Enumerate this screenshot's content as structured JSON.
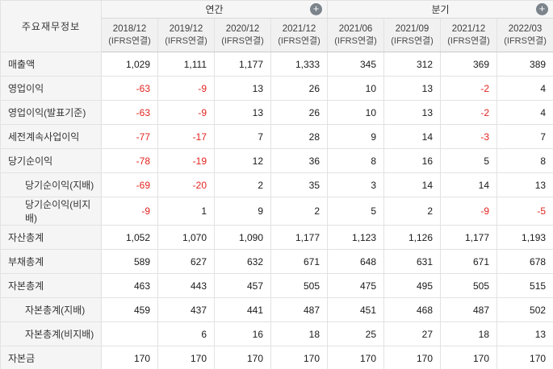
{
  "table": {
    "corner_label": "주요재무정보",
    "groups": [
      {
        "label": "연간",
        "icon": "plus-circle-icon"
      },
      {
        "label": "분기",
        "icon": "plus-circle-icon"
      }
    ],
    "columns": [
      {
        "date": "2018/12",
        "basis": "(IFRS연결)",
        "group": "연간"
      },
      {
        "date": "2019/12",
        "basis": "(IFRS연결)",
        "group": "연간"
      },
      {
        "date": "2020/12",
        "basis": "(IFRS연결)",
        "group": "연간"
      },
      {
        "date": "2021/12",
        "basis": "(IFRS연결)",
        "group": "연간"
      },
      {
        "date": "2021/06",
        "basis": "(IFRS연결)",
        "group": "분기"
      },
      {
        "date": "2021/09",
        "basis": "(IFRS연결)",
        "group": "분기"
      },
      {
        "date": "2021/12",
        "basis": "(IFRS연결)",
        "group": "분기"
      },
      {
        "date": "2022/03",
        "basis": "(IFRS연결)",
        "group": "분기"
      }
    ],
    "rows": [
      {
        "label": "매출액",
        "indent": false,
        "values": [
          "1,029",
          "1,111",
          "1,177",
          "1,333",
          "345",
          "312",
          "369",
          "389"
        ]
      },
      {
        "label": "영업이익",
        "indent": false,
        "values": [
          "-63",
          "-9",
          "13",
          "26",
          "10",
          "13",
          "-2",
          "4"
        ]
      },
      {
        "label": "영업이익(발표기준)",
        "indent": false,
        "values": [
          "-63",
          "-9",
          "13",
          "26",
          "10",
          "13",
          "-2",
          "4"
        ]
      },
      {
        "label": "세전계속사업이익",
        "indent": false,
        "values": [
          "-77",
          "-17",
          "7",
          "28",
          "9",
          "14",
          "-3",
          "7"
        ]
      },
      {
        "label": "당기순이익",
        "indent": false,
        "values": [
          "-78",
          "-19",
          "12",
          "36",
          "8",
          "16",
          "5",
          "8"
        ]
      },
      {
        "label": "당기순이익(지배)",
        "indent": true,
        "values": [
          "-69",
          "-20",
          "2",
          "35",
          "3",
          "14",
          "14",
          "13"
        ]
      },
      {
        "label": "당기순이익(비지배)",
        "indent": true,
        "values": [
          "-9",
          "1",
          "9",
          "2",
          "5",
          "2",
          "-9",
          "-5"
        ]
      },
      {
        "label": "자산총계",
        "indent": false,
        "values": [
          "1,052",
          "1,070",
          "1,090",
          "1,177",
          "1,123",
          "1,126",
          "1,177",
          "1,193"
        ]
      },
      {
        "label": "부채총계",
        "indent": false,
        "values": [
          "589",
          "627",
          "632",
          "671",
          "648",
          "631",
          "671",
          "678"
        ]
      },
      {
        "label": "자본총계",
        "indent": false,
        "values": [
          "463",
          "443",
          "457",
          "505",
          "475",
          "495",
          "505",
          "515"
        ]
      },
      {
        "label": "자본총계(지배)",
        "indent": true,
        "values": [
          "459",
          "437",
          "441",
          "487",
          "451",
          "468",
          "487",
          "502"
        ]
      },
      {
        "label": "자본총계(비지배)",
        "indent": true,
        "values": [
          "",
          "6",
          "16",
          "18",
          "25",
          "27",
          "18",
          "13"
        ]
      },
      {
        "label": "자본금",
        "indent": false,
        "values": [
          "170",
          "170",
          "170",
          "170",
          "170",
          "170",
          "170",
          "170"
        ]
      }
    ],
    "plus_glyph": "+"
  },
  "colors": {
    "negative": "#e3231e",
    "plus-bg": "#7b838b",
    "hdr-bg": "#f6f6f6",
    "date-bg": "#f1f1f1",
    "label-bg": "#f5f5f5",
    "border": "#e2e2e2"
  }
}
